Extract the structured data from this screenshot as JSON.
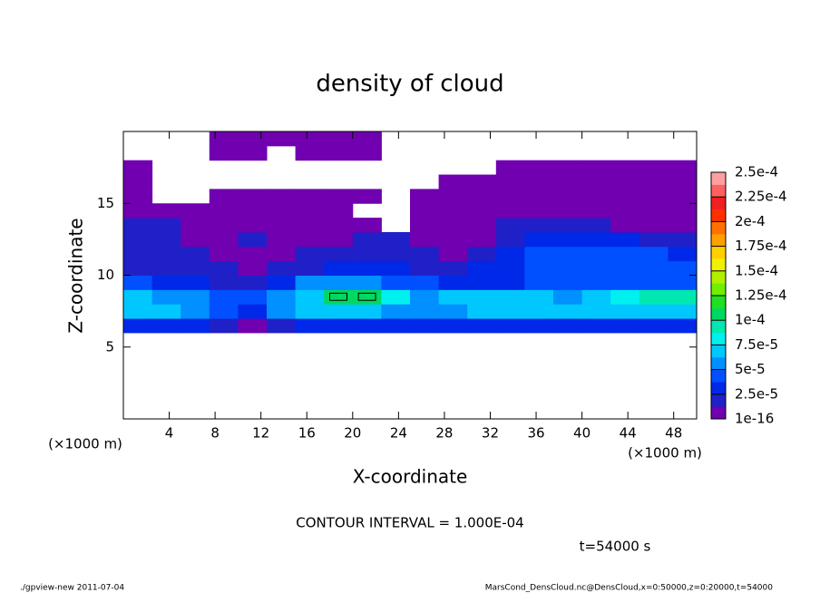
{
  "chart_data": {
    "type": "heatmap",
    "title": "density of cloud",
    "x_label": "X-coordinate",
    "y_label": "Z-coordinate",
    "annotations": [
      "(×1000 m)",
      "(×1000 m)",
      "CONTOUR INTERVAL = 1.000E-04",
      "t=54000 s",
      "./gpview-new  2011-07-04",
      "MarsCond_DensCloud.nc@DensCloud,x=0:50000,z=0:20000,t=54000"
    ],
    "contour_interval": 0.0001,
    "contour_color": "#000000",
    "xlim": [
      0,
      50
    ],
    "xticks": [
      4,
      8,
      12,
      16,
      20,
      24,
      28,
      32,
      36,
      40,
      44,
      48
    ],
    "ylim": [
      0,
      20
    ],
    "yticks": [
      5,
      10,
      15
    ],
    "x": [
      1.25,
      3.75,
      6.25,
      8.75,
      11.25,
      13.75,
      16.25,
      18.75,
      21.25,
      23.75,
      26.25,
      28.75,
      31.25,
      33.75,
      36.25,
      38.75,
      41.25,
      43.75,
      46.25,
      48.75
    ],
    "y": [
      6.5,
      7.5,
      8.5,
      9.5,
      10.5,
      11.5,
      12.5,
      13.5,
      14.5,
      15.5,
      16.5,
      17.5,
      18.5,
      19.5
    ],
    "values": [
      [
        3e-05,
        3e-05,
        3e-05,
        2e-05,
        1e-05,
        2e-05,
        3e-05,
        3e-05,
        3e-05,
        3e-05,
        3e-05,
        3e-05,
        3e-05,
        3e-05,
        3e-05,
        3e-05,
        3e-05,
        3e-05,
        3e-05,
        3e-05
      ],
      [
        7e-05,
        7e-05,
        6e-05,
        5e-05,
        3e-05,
        6e-05,
        7e-05,
        7e-05,
        7e-05,
        6e-05,
        6e-05,
        6e-05,
        7e-05,
        7e-05,
        7e-05,
        7e-05,
        7e-05,
        7e-05,
        7e-05,
        7e-05
      ],
      [
        7e-05,
        6e-05,
        6e-05,
        5e-05,
        4e-05,
        6e-05,
        7e-05,
        0.000105,
        0.000105,
        8e-05,
        6e-05,
        7e-05,
        7e-05,
        7e-05,
        7e-05,
        6e-05,
        7e-05,
        8e-05,
        9e-05,
        9e-05
      ],
      [
        4e-05,
        3e-05,
        3e-05,
        2e-05,
        2e-05,
        3e-05,
        6e-05,
        6e-05,
        6e-05,
        5e-05,
        4e-05,
        3e-05,
        3e-05,
        3e-05,
        4e-05,
        4e-05,
        4e-05,
        4e-05,
        4e-05,
        4e-05
      ],
      [
        2e-05,
        2e-05,
        2e-05,
        2e-05,
        1e-05,
        2e-05,
        2e-05,
        3e-05,
        3e-05,
        3e-05,
        2e-05,
        2e-05,
        3e-05,
        3e-05,
        4e-05,
        4e-05,
        4e-05,
        4e-05,
        4e-05,
        4e-05
      ],
      [
        2e-05,
        2e-05,
        2e-05,
        1e-05,
        1e-05,
        1e-05,
        2e-05,
        2e-05,
        2e-05,
        2e-05,
        2e-05,
        1e-05,
        2e-05,
        3e-05,
        4e-05,
        4e-05,
        4e-05,
        4e-05,
        4e-05,
        3e-05
      ],
      [
        2e-05,
        2e-05,
        1e-05,
        1e-05,
        2e-05,
        1e-05,
        1e-05,
        1e-05,
        2e-05,
        2e-05,
        1e-05,
        1e-05,
        1e-05,
        2e-05,
        3e-05,
        3e-05,
        3e-05,
        3e-05,
        2e-05,
        2e-05
      ],
      [
        2e-05,
        2e-05,
        1e-05,
        1e-05,
        1e-05,
        1e-05,
        1e-05,
        5e-06,
        5e-06,
        null,
        5e-06,
        5e-06,
        1e-05,
        2e-05,
        2e-05,
        2e-05,
        2e-05,
        1e-05,
        1e-05,
        1e-05
      ],
      [
        1e-05,
        1e-05,
        5e-06,
        5e-06,
        5e-06,
        5e-06,
        5e-06,
        5e-06,
        null,
        null,
        5e-06,
        5e-06,
        1e-05,
        1e-05,
        1e-05,
        1e-05,
        5e-06,
        5e-06,
        5e-06,
        5e-06
      ],
      [
        5e-06,
        null,
        null,
        5e-06,
        5e-06,
        5e-06,
        5e-06,
        5e-06,
        5e-06,
        null,
        5e-06,
        5e-06,
        5e-06,
        5e-06,
        5e-06,
        5e-06,
        5e-06,
        5e-06,
        5e-06,
        5e-06
      ],
      [
        5e-06,
        null,
        null,
        null,
        null,
        null,
        null,
        null,
        null,
        null,
        null,
        5e-06,
        5e-06,
        5e-06,
        5e-06,
        5e-06,
        5e-06,
        5e-06,
        5e-06,
        5e-06
      ],
      [
        5e-06,
        null,
        null,
        null,
        null,
        null,
        null,
        null,
        null,
        null,
        null,
        null,
        null,
        5e-06,
        5e-06,
        5e-06,
        5e-06,
        5e-06,
        5e-06,
        5e-06
      ],
      [
        null,
        null,
        null,
        5e-06,
        5e-06,
        null,
        5e-06,
        5e-06,
        5e-06,
        null,
        null,
        null,
        null,
        null,
        null,
        null,
        null,
        null,
        null,
        null
      ],
      [
        null,
        null,
        null,
        5e-06,
        5e-06,
        5e-06,
        5e-06,
        5e-06,
        5e-06,
        null,
        null,
        null,
        null,
        null,
        null,
        null,
        null,
        null,
        null,
        null
      ]
    ],
    "zlim": [
      1e-16,
      0.00025
    ],
    "zticks": [
      {
        "value": 1e-16,
        "label": "1e-16"
      },
      {
        "value": 2.5e-05,
        "label": "2.5e-5"
      },
      {
        "value": 5e-05,
        "label": "5e-5"
      },
      {
        "value": 7.5e-05,
        "label": "7.5e-5"
      },
      {
        "value": 0.0001,
        "label": "1e-4"
      },
      {
        "value": 0.000125,
        "label": "1.25e-4"
      },
      {
        "value": 0.00015,
        "label": "1.5e-4"
      },
      {
        "value": 0.000175,
        "label": "1.75e-4"
      },
      {
        "value": 0.0002,
        "label": "2e-4"
      },
      {
        "value": 0.000225,
        "label": "2.25e-4"
      },
      {
        "value": 0.00025,
        "label": "2.5e-4"
      }
    ],
    "colors": [
      "#7000b0",
      "#2020c8",
      "#0028e8",
      "#0050ff",
      "#0090ff",
      "#00c8ff",
      "#00f0f0",
      "#00e8b0",
      "#00d860",
      "#20e020",
      "#70f000",
      "#b0f000",
      "#f0f000",
      "#ffd000",
      "#ffa000",
      "#ff7000",
      "#ff3000",
      "#f02020",
      "#ff6060",
      "#ffa0a0"
    ]
  }
}
